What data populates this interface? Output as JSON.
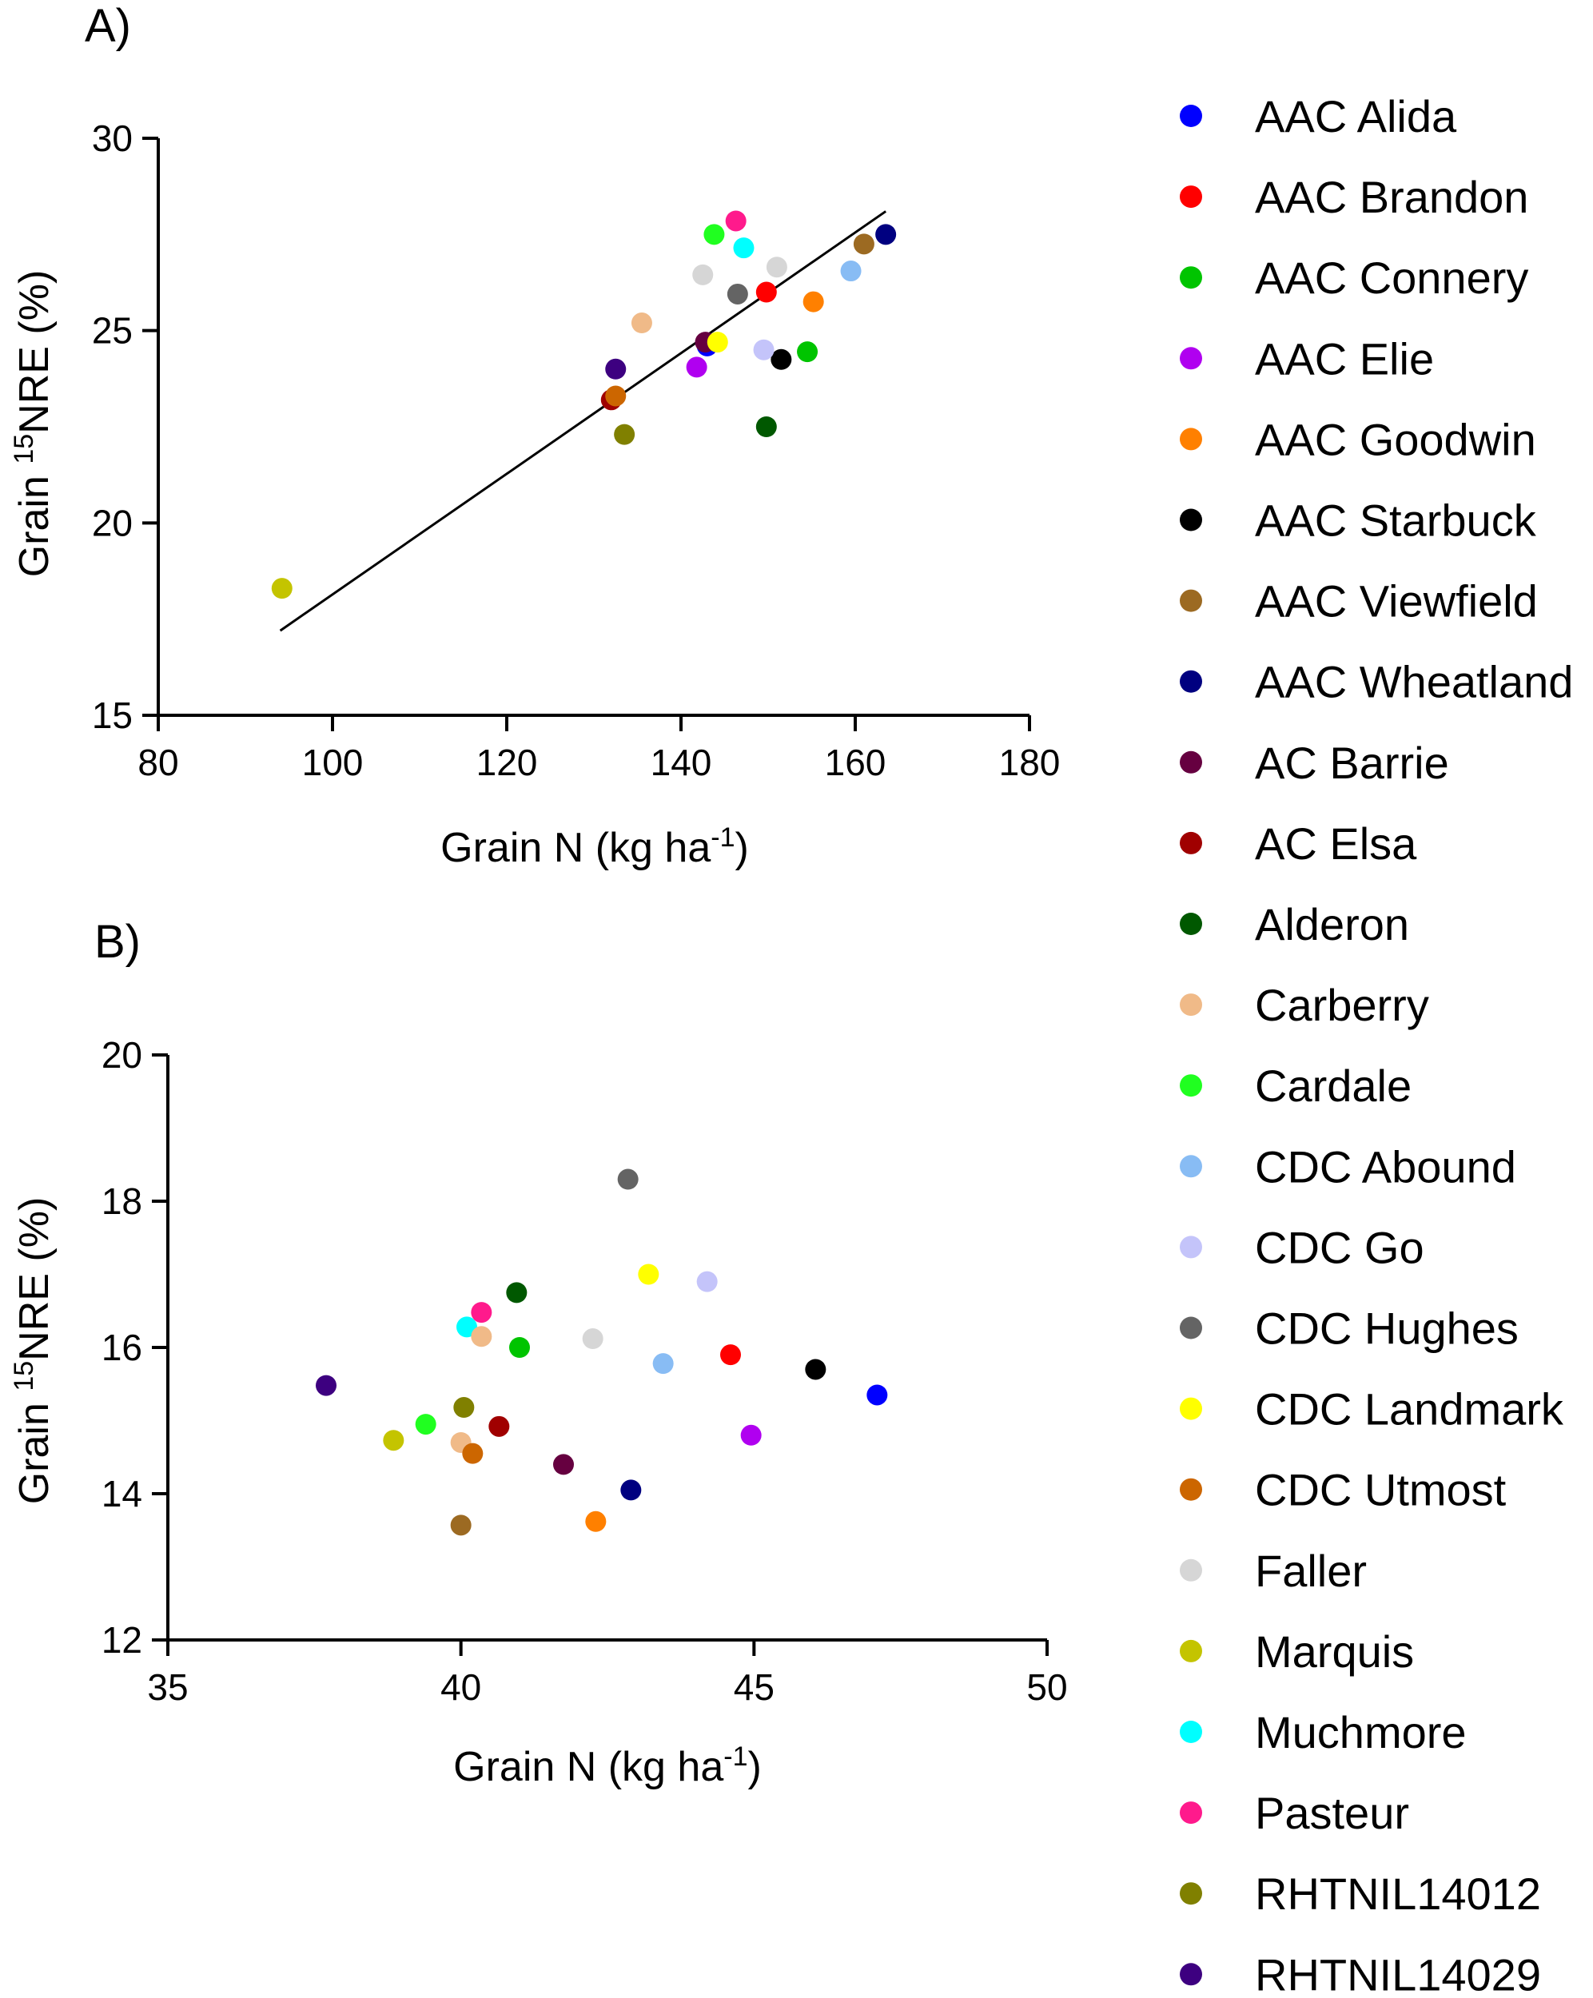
{
  "chart_data": [
    {
      "panel": "A)",
      "type": "scatter",
      "xlabel": "Grain N (kg ha-1)",
      "ylabel": "Grain 15NRE (%)",
      "xlim": [
        80,
        180
      ],
      "ylim": [
        15,
        30
      ],
      "xticks": [
        80,
        100,
        120,
        140,
        160,
        180
      ],
      "yticks": [
        15,
        20,
        25,
        30
      ],
      "trendline": {
        "x": [
          94,
          163.5
        ],
        "y": [
          17.2,
          28.1
        ]
      },
      "points": [
        {
          "cultivar": "AAC Alida",
          "x": 143.0,
          "y": 24.6
        },
        {
          "cultivar": "AAC Brandon",
          "x": 149.8,
          "y": 26.0
        },
        {
          "cultivar": "AAC Connery",
          "x": 154.5,
          "y": 24.45
        },
        {
          "cultivar": "AAC Elie",
          "x": 141.8,
          "y": 24.05
        },
        {
          "cultivar": "AAC Goodwin",
          "x": 155.2,
          "y": 25.75
        },
        {
          "cultivar": "AAC Starbuck",
          "x": 151.5,
          "y": 24.25
        },
        {
          "cultivar": "AAC Viewfield",
          "x": 161.0,
          "y": 27.25
        },
        {
          "cultivar": "AAC Wheatland",
          "x": 163.5,
          "y": 27.5
        },
        {
          "cultivar": "AC Barrie",
          "x": 142.8,
          "y": 24.7
        },
        {
          "cultivar": "AC Elsa",
          "x": 132.0,
          "y": 23.2
        },
        {
          "cultivar": "Alderon",
          "x": 149.8,
          "y": 22.5
        },
        {
          "cultivar": "Carberry",
          "x": 135.5,
          "y": 25.2
        },
        {
          "cultivar": "Cardale",
          "x": 143.8,
          "y": 27.5
        },
        {
          "cultivar": "CDC Abound",
          "x": 159.5,
          "y": 26.55
        },
        {
          "cultivar": "CDC Go",
          "x": 149.5,
          "y": 24.5
        },
        {
          "cultivar": "CDC Hughes",
          "x": 146.5,
          "y": 25.95
        },
        {
          "cultivar": "CDC Landmark",
          "x": 144.2,
          "y": 24.7
        },
        {
          "cultivar": "CDC Utmost",
          "x": 132.5,
          "y": 23.3
        },
        {
          "cultivar": "Faller",
          "x": 142.5,
          "y": 26.45
        },
        {
          "cultivar": "Marquis",
          "x": 94.2,
          "y": 18.3
        },
        {
          "cultivar": "Muchmore",
          "x": 147.2,
          "y": 27.15
        },
        {
          "cultivar": "Pasteur",
          "x": 146.3,
          "y": 27.85
        },
        {
          "cultivar": "RHTNIL14012",
          "x": 133.5,
          "y": 22.3
        },
        {
          "cultivar": "RHTNIL14029",
          "x": 132.5,
          "y": 24.0
        },
        {
          "cultivar": "Faller",
          "x": 151.0,
          "y": 26.65
        }
      ]
    },
    {
      "panel": "B)",
      "type": "scatter",
      "xlabel": "Grain N (kg ha-1)",
      "ylabel": "Grain 15NRE (%)",
      "xlim": [
        35,
        50
      ],
      "ylim": [
        12,
        20
      ],
      "xticks": [
        35,
        40,
        45,
        50
      ],
      "yticks": [
        12,
        14,
        16,
        18,
        20
      ],
      "points": [
        {
          "cultivar": "AAC Alida",
          "x": 47.1,
          "y": 15.35
        },
        {
          "cultivar": "AAC Brandon",
          "x": 44.6,
          "y": 15.9
        },
        {
          "cultivar": "AAC Connery",
          "x": 41.0,
          "y": 16.0
        },
        {
          "cultivar": "AAC Elie",
          "x": 44.95,
          "y": 14.8
        },
        {
          "cultivar": "AAC Goodwin",
          "x": 42.3,
          "y": 13.62
        },
        {
          "cultivar": "AAC Starbuck",
          "x": 46.05,
          "y": 15.7
        },
        {
          "cultivar": "AAC Viewfield",
          "x": 40.0,
          "y": 13.57
        },
        {
          "cultivar": "AAC Wheatland",
          "x": 42.9,
          "y": 14.05
        },
        {
          "cultivar": "AC Barrie",
          "x": 41.75,
          "y": 14.4
        },
        {
          "cultivar": "AC Elsa",
          "x": 40.65,
          "y": 14.92
        },
        {
          "cultivar": "Alderon",
          "x": 40.95,
          "y": 16.75
        },
        {
          "cultivar": "Carberry",
          "x": 40.0,
          "y": 14.7
        },
        {
          "cultivar": "Cardale",
          "x": 39.4,
          "y": 14.95
        },
        {
          "cultivar": "CDC Abound",
          "x": 43.45,
          "y": 15.78
        },
        {
          "cultivar": "CDC Go",
          "x": 44.2,
          "y": 16.9
        },
        {
          "cultivar": "CDC Hughes",
          "x": 42.85,
          "y": 18.3
        },
        {
          "cultivar": "CDC Landmark",
          "x": 43.2,
          "y": 17.0
        },
        {
          "cultivar": "CDC Utmost",
          "x": 40.2,
          "y": 14.55
        },
        {
          "cultivar": "Faller",
          "x": 42.25,
          "y": 16.12
        },
        {
          "cultivar": "Marquis",
          "x": 38.85,
          "y": 14.73
        },
        {
          "cultivar": "Muchmore",
          "x": 40.1,
          "y": 16.28
        },
        {
          "cultivar": "Pasteur",
          "x": 40.35,
          "y": 16.48
        },
        {
          "cultivar": "RHTNIL14012",
          "x": 40.05,
          "y": 15.18
        },
        {
          "cultivar": "RHTNIL14029",
          "x": 37.7,
          "y": 15.48
        },
        {
          "cultivar": "Carberry",
          "x": 40.35,
          "y": 16.15
        }
      ]
    }
  ],
  "legend": {
    "placement": "right",
    "entries": [
      {
        "name": "AAC Alida",
        "color": "#0000FF"
      },
      {
        "name": "AAC Brandon",
        "color": "#FF0000"
      },
      {
        "name": "AAC Connery",
        "color": "#00C400"
      },
      {
        "name": "AAC Elie",
        "color": "#B000F0"
      },
      {
        "name": "AAC Goodwin",
        "color": "#FF8000"
      },
      {
        "name": "AAC Starbuck",
        "color": "#000000"
      },
      {
        "name": "AAC Viewfield",
        "color": "#9C6A22"
      },
      {
        "name": "AAC Wheatland",
        "color": "#000080"
      },
      {
        "name": "AC Barrie",
        "color": "#660040"
      },
      {
        "name": "AC Elsa",
        "color": "#A00000"
      },
      {
        "name": "Alderon",
        "color": "#005800"
      },
      {
        "name": "Carberry",
        "color": "#F0BA88"
      },
      {
        "name": "Cardale",
        "color": "#20FF20"
      },
      {
        "name": "CDC Abound",
        "color": "#88BCF4"
      },
      {
        "name": "CDC Go",
        "color": "#C4C4FA"
      },
      {
        "name": "CDC Hughes",
        "color": "#646464"
      },
      {
        "name": "CDC Landmark",
        "color": "#FFFF00"
      },
      {
        "name": "CDC Utmost",
        "color": "#CC6600"
      },
      {
        "name": "Faller",
        "color": "#D6D6D6"
      },
      {
        "name": "Marquis",
        "color": "#C4C400"
      },
      {
        "name": "Muchmore",
        "color": "#00FFFF"
      },
      {
        "name": "Pasteur",
        "color": "#FF1A8C"
      },
      {
        "name": "RHTNIL14012",
        "color": "#808000"
      },
      {
        "name": "RHTNIL14029",
        "color": "#3D0080"
      }
    ]
  }
}
